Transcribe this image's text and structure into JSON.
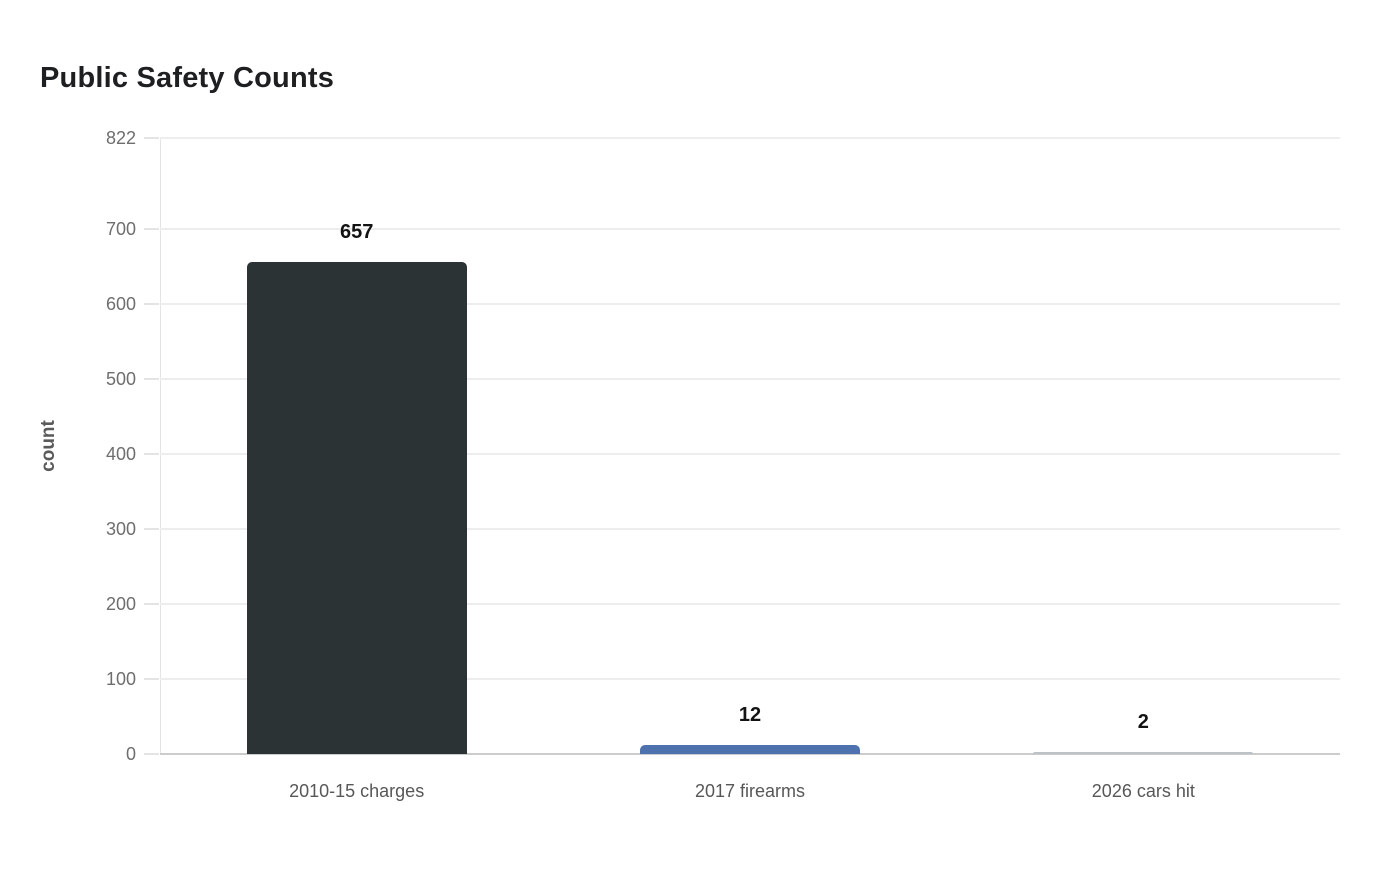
{
  "header": {
    "title": "Public Safety Counts"
  },
  "chart_data": {
    "type": "bar",
    "title": "Public Safety Counts",
    "categories": [
      "2010-15 charges",
      "2017 firearms",
      "2026 cars hit"
    ],
    "values": [
      657,
      12,
      2
    ],
    "value_labels": [
      "657",
      "12",
      "2"
    ],
    "bar_colors": [
      "#2b3335",
      "#4d72ad",
      "#bcc2c6"
    ],
    "xlabel": "",
    "ylabel": "count",
    "ylim": [
      0,
      822
    ],
    "yticks": [
      0,
      100,
      200,
      300,
      400,
      500,
      600,
      700,
      822
    ],
    "grid": "horizontal-only",
    "legend": "none",
    "colors": {
      "gridline": "#ededed",
      "baseline": "#cccccc",
      "tick_label": "#6e6e6e",
      "x_label": "#575757",
      "value_label": "#131313",
      "title": "#1d1f20",
      "background": "#ffffff"
    }
  }
}
